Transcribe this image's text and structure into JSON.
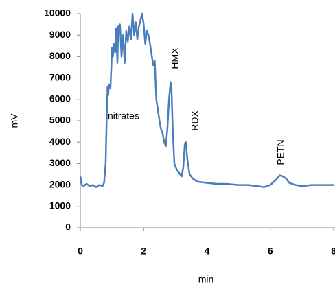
{
  "chart_data": {
    "type": "line",
    "x_label": "min",
    "y_label": "mV",
    "annotations": [
      "nitrates",
      "HMX",
      "RDX",
      "PETN"
    ],
    "color": "#4a7ebb",
    "xlim": [
      0,
      8
    ],
    "xticks": [
      0,
      2,
      4,
      6,
      8
    ],
    "ylim": [
      0,
      10000
    ],
    "yticks": [
      0,
      1000,
      2000,
      3000,
      4000,
      5000,
      6000,
      7000,
      8000,
      9000,
      10000
    ],
    "x": [
      0,
      0.05,
      0.1,
      0.2,
      0.3,
      0.4,
      0.5,
      0.6,
      0.7,
      0.75,
      0.8,
      0.83,
      0.86,
      0.88,
      0.9,
      0.95,
      0.98,
      1.0,
      1.03,
      1.06,
      1.1,
      1.13,
      1.17,
      1.2,
      1.25,
      1.3,
      1.35,
      1.4,
      1.45,
      1.5,
      1.55,
      1.6,
      1.65,
      1.7,
      1.75,
      1.8,
      1.85,
      1.9,
      1.95,
      2.0,
      2.05,
      2.1,
      2.15,
      2.2,
      2.3,
      2.35,
      2.4,
      2.45,
      2.5,
      2.55,
      2.6,
      2.65,
      2.7,
      2.75,
      2.8,
      2.85,
      2.88,
      2.92,
      2.97,
      3.05,
      3.15,
      3.2,
      3.25,
      3.3,
      3.33,
      3.38,
      3.45,
      3.55,
      3.7,
      4.0,
      4.3,
      4.6,
      5.0,
      5.3,
      5.6,
      5.8,
      6.0,
      6.15,
      6.3,
      6.4,
      6.5,
      6.6,
      6.8,
      7.0,
      7.3,
      7.6,
      8.0
    ],
    "values": [
      2400,
      2000,
      1950,
      2050,
      1950,
      2000,
      1900,
      2000,
      1950,
      2100,
      3000,
      5000,
      6600,
      6200,
      6700,
      6500,
      7500,
      8400,
      8000,
      8600,
      8200,
      9300,
      7700,
      9400,
      9500,
      8000,
      9000,
      7700,
      9200,
      8700,
      9400,
      8800,
      10000,
      9000,
      9600,
      8800,
      9400,
      9700,
      10000,
      9500,
      8600,
      9200,
      9000,
      8600,
      7600,
      7800,
      6000,
      5500,
      5000,
      4600,
      4400,
      4000,
      3800,
      4600,
      6000,
      6800,
      6500,
      4500,
      3000,
      2700,
      2500,
      2400,
      2800,
      3900,
      4000,
      3200,
      2500,
      2300,
      2150,
      2100,
      2050,
      2050,
      2000,
      2000,
      1950,
      1900,
      2000,
      2200,
      2450,
      2400,
      2300,
      2100,
      2000,
      1950,
      2000,
      2000,
      2000
    ]
  }
}
